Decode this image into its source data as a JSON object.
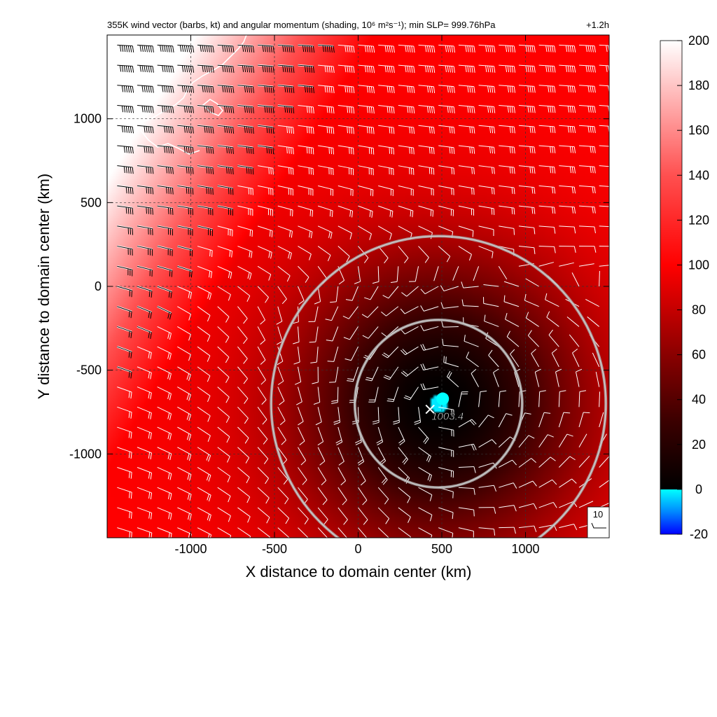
{
  "chart_data": {
    "type": "heatmap",
    "title": "355K wind vector (barbs, kt) and angular momentum (shading, 10⁶ m²s⁻¹); min SLP= 999.76hPa",
    "time_label": "+1.2h",
    "xlabel": "X distance to domain center (km)",
    "ylabel": "Y distance to domain center (km)",
    "xlim": [
      -1500,
      1500
    ],
    "ylim": [
      -1500,
      1500
    ],
    "xticks": [
      -1000,
      -500,
      0,
      500,
      1000
    ],
    "yticks": [
      -1000,
      -500,
      0,
      500,
      1000
    ],
    "grid": true,
    "colorbar": {
      "range": [
        -20,
        200
      ],
      "ticks": [
        200,
        180,
        160,
        140,
        120,
        100,
        80,
        60,
        40,
        20,
        0,
        -20
      ],
      "stops": [
        {
          "value": -20,
          "color": "#0000ff"
        },
        {
          "value": -10,
          "color": "#0088ff"
        },
        {
          "value": 0,
          "color": "#00ffff"
        },
        {
          "value": 0.01,
          "color": "#000000"
        },
        {
          "value": 30,
          "color": "#3a0000"
        },
        {
          "value": 60,
          "color": "#8a0000"
        },
        {
          "value": 100,
          "color": "#ff0000"
        },
        {
          "value": 140,
          "color": "#ff5050"
        },
        {
          "value": 200,
          "color": "#ffffff"
        }
      ]
    },
    "vortex_center": {
      "x": 480,
      "y": -700
    },
    "slp_label": "1003.4",
    "rings_km": [
      500,
      1000
    ],
    "barb_reference": {
      "label": "10",
      "speed_kt": 10
    }
  }
}
